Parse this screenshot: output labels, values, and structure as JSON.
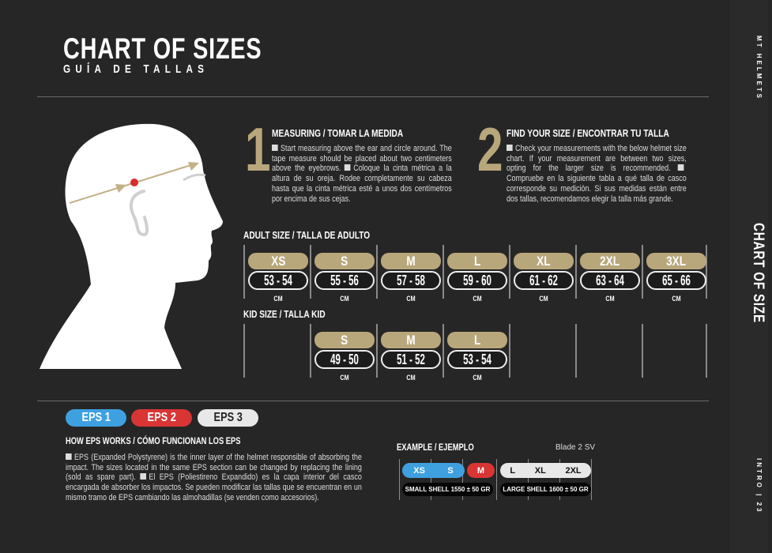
{
  "header": {
    "title": "CHART OF SIZES",
    "subtitle": "GUÍA DE TALLAS"
  },
  "steps": [
    {
      "number": "1",
      "heading": "MEASURING / TOMAR LA MEDIDA",
      "text_en": "Start measuring above the ear and circle around. The tape measure should be placed about two centimeters above the eyebrows.",
      "text_es": "Coloque la cinta métrica a la altura de su oreja. Rodee completamente su cabeza hasta que la cinta métrica esté a unos dos centímetros por encima de sus cejas."
    },
    {
      "number": "2",
      "heading": "FIND YOUR SIZE / ENCONTRAR TU TALLA",
      "text_en": "Check your measurements with the below helmet size chart. If your measurement are between two sizes, opting for the larger size is recommended.",
      "text_es": "Compruebe en la siguiente tabla a qué talla de casco corresponde su medición. Si sus medidas están entre dos tallas, recomendamos elegir la talla más grande."
    }
  ],
  "adult": {
    "label": "ADULT SIZE / TALLA DE ADULTO",
    "sizes": [
      {
        "size": "XS",
        "range": "53 - 54",
        "unit": "CM"
      },
      {
        "size": "S",
        "range": "55 - 56",
        "unit": "CM"
      },
      {
        "size": "M",
        "range": "57 - 58",
        "unit": "CM"
      },
      {
        "size": "L",
        "range": "59 - 60",
        "unit": "CM"
      },
      {
        "size": "XL",
        "range": "61 - 62",
        "unit": "CM"
      },
      {
        "size": "2XL",
        "range": "63 - 64",
        "unit": "CM"
      },
      {
        "size": "3XL",
        "range": "65 - 66",
        "unit": "CM"
      }
    ]
  },
  "kid": {
    "label": "KID SIZE / TALLA KID",
    "sizes": [
      {
        "size": "S",
        "range": "49 - 50",
        "unit": "CM"
      },
      {
        "size": "M",
        "range": "51 - 52",
        "unit": "CM"
      },
      {
        "size": "L",
        "range": "53 - 54",
        "unit": "CM"
      }
    ]
  },
  "eps": {
    "badges": [
      {
        "label": "EPS 1",
        "color": "#3fa0e0"
      },
      {
        "label": "EPS 2",
        "color": "#d93535"
      },
      {
        "label": "EPS 3",
        "color": "#e8e8e8"
      }
    ],
    "heading": "HOW EPS WORKS / CÓMO FUNCIONAN LOS EPS",
    "text_en": "EPS (Expanded Polystyrene) is the inner layer of the helmet responsible of absorbing the impact. The sizes located in the same EPS section can be changed by replacing the lining (sold as spare part).",
    "text_es": "El EPS (Poliestireno Expandido) es la capa interior del casco encargada de absorber los impactos. Se pueden modificar las tallas que se encuentran en un mismo tramo de EPS cambiando las almohadillas (se venden como accesorios)."
  },
  "example": {
    "heading": "EXAMPLE / EJEMPLO",
    "model": "Blade 2 SV",
    "eps1": [
      "XS",
      "S"
    ],
    "eps2": [
      "M"
    ],
    "eps3": [
      "L",
      "XL",
      "2XL"
    ],
    "small_shell": "SMALL SHELL 1550 ± 50 GR",
    "large_shell": "LARGE SHELL 1600 ± 50 GR"
  },
  "sidebar": {
    "brand": "MT HELMETS",
    "section": "CHART OF SIZE",
    "page": "INTRO | 23"
  },
  "colors": {
    "gold": "#b9a77c",
    "background": "#262626",
    "marker": "#d92c2c"
  }
}
